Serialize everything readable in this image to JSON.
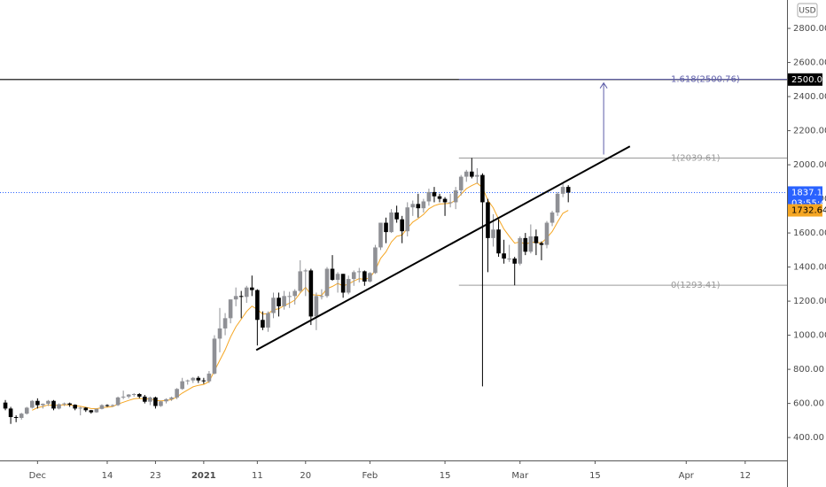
{
  "chart_data": {
    "type": "candlestick",
    "currency": "USD",
    "xlim": [
      -1,
      145.8
    ],
    "xticks": [
      {
        "value": 6,
        "label": "Dec"
      },
      {
        "value": 19,
        "label": "14"
      },
      {
        "value": 28,
        "label": "23"
      },
      {
        "value": 37,
        "label": "2021"
      },
      {
        "value": 47,
        "label": "11"
      },
      {
        "value": 56,
        "label": "20"
      },
      {
        "value": 68,
        "label": "Feb"
      },
      {
        "value": 82,
        "label": "15"
      },
      {
        "value": 96,
        "label": "Mar"
      },
      {
        "value": 110,
        "label": "15"
      },
      {
        "value": 127,
        "label": "Apr"
      },
      {
        "value": 138,
        "label": "12"
      }
    ],
    "ylim": [
      265.6,
      2966.5
    ],
    "yticks": [
      {
        "value": 400,
        "label": "400.00"
      },
      {
        "value": 600,
        "label": "600.00"
      },
      {
        "value": 800,
        "label": "800.00"
      },
      {
        "value": 1000,
        "label": "1000.00"
      },
      {
        "value": 1200,
        "label": "1200.00"
      },
      {
        "value": 1400,
        "label": "1400.00"
      },
      {
        "value": 1600,
        "label": "1600.00"
      },
      {
        "value": 1800,
        "label": "1800.00"
      },
      {
        "value": 2000,
        "label": "2000.00"
      },
      {
        "value": 2200,
        "label": "2200.00"
      },
      {
        "value": 2400,
        "label": "2400.00"
      },
      {
        "value": 2600,
        "label": "2600.00"
      },
      {
        "value": 2800,
        "label": "2800.00"
      }
    ],
    "grid": false,
    "up_color": "#8f9095",
    "down_color": "#000000",
    "ma_color": "#f5a623",
    "ohlc": [
      [
        605,
        620,
        560,
        570
      ],
      [
        570,
        580,
        480,
        520
      ],
      [
        520,
        530,
        490,
        515
      ],
      [
        515,
        545,
        505,
        540
      ],
      [
        540,
        580,
        535,
        575
      ],
      [
        575,
        620,
        570,
        615
      ],
      [
        615,
        630,
        570,
        590
      ],
      [
        590,
        600,
        570,
        598
      ],
      [
        598,
        620,
        585,
        615
      ],
      [
        615,
        620,
        560,
        570
      ],
      [
        570,
        600,
        565,
        595
      ],
      [
        595,
        605,
        585,
        600
      ],
      [
        600,
        605,
        580,
        592
      ],
      [
        592,
        595,
        560,
        570
      ],
      [
        570,
        580,
        530,
        575
      ],
      [
        575,
        578,
        550,
        560
      ],
      [
        560,
        562,
        540,
        548
      ],
      [
        548,
        570,
        545,
        568
      ],
      [
        568,
        595,
        565,
        590
      ],
      [
        590,
        595,
        580,
        585
      ],
      [
        585,
        595,
        580,
        590
      ],
      [
        590,
        640,
        585,
        635
      ],
      [
        635,
        675,
        625,
        640
      ],
      [
        640,
        655,
        630,
        652
      ],
      [
        652,
        660,
        640,
        655
      ],
      [
        655,
        660,
        630,
        640
      ],
      [
        640,
        650,
        600,
        610
      ],
      [
        610,
        640,
        590,
        635
      ],
      [
        635,
        640,
        570,
        585
      ],
      [
        585,
        615,
        580,
        612
      ],
      [
        612,
        630,
        600,
        625
      ],
      [
        625,
        640,
        615,
        635
      ],
      [
        635,
        690,
        625,
        685
      ],
      [
        685,
        750,
        680,
        730
      ],
      [
        730,
        740,
        710,
        735
      ],
      [
        735,
        755,
        720,
        750
      ],
      [
        750,
        760,
        720,
        735
      ],
      [
        735,
        750,
        715,
        730
      ],
      [
        730,
        790,
        720,
        775
      ],
      [
        775,
        1000,
        770,
        980
      ],
      [
        980,
        1160,
        900,
        1040
      ],
      [
        1040,
        1130,
        1000,
        1100
      ],
      [
        1100,
        1210,
        1070,
        1210
      ],
      [
        1210,
        1280,
        1170,
        1230
      ],
      [
        1230,
        1260,
        1100,
        1225
      ],
      [
        1225,
        1290,
        1190,
        1280
      ],
      [
        1280,
        1350,
        1230,
        1265
      ],
      [
        1265,
        1270,
        940,
        1090
      ],
      [
        1090,
        1140,
        1030,
        1045
      ],
      [
        1045,
        1140,
        1020,
        1130
      ],
      [
        1130,
        1250,
        1100,
        1220
      ],
      [
        1220,
        1250,
        1110,
        1170
      ],
      [
        1170,
        1260,
        1150,
        1230
      ],
      [
        1230,
        1255,
        1160,
        1230
      ],
      [
        1230,
        1270,
        1180,
        1260
      ],
      [
        1260,
        1440,
        1250,
        1375
      ],
      [
        1375,
        1390,
        1230,
        1380
      ],
      [
        1380,
        1390,
        1060,
        1110
      ],
      [
        1110,
        1250,
        1030,
        1230
      ],
      [
        1230,
        1270,
        1210,
        1230
      ],
      [
        1230,
        1400,
        1220,
        1390
      ],
      [
        1390,
        1470,
        1320,
        1325
      ],
      [
        1325,
        1370,
        1250,
        1360
      ],
      [
        1360,
        1360,
        1220,
        1250
      ],
      [
        1250,
        1350,
        1240,
        1330
      ],
      [
        1330,
        1380,
        1290,
        1370
      ],
      [
        1370,
        1395,
        1310,
        1375
      ],
      [
        1375,
        1380,
        1290,
        1315
      ],
      [
        1315,
        1370,
        1310,
        1365
      ],
      [
        1365,
        1530,
        1360,
        1515
      ],
      [
        1515,
        1660,
        1500,
        1660
      ],
      [
        1660,
        1690,
        1540,
        1605
      ],
      [
        1605,
        1740,
        1600,
        1720
      ],
      [
        1720,
        1760,
        1660,
        1680
      ],
      [
        1680,
        1700,
        1540,
        1610
      ],
      [
        1610,
        1780,
        1580,
        1750
      ],
      [
        1750,
        1790,
        1700,
        1770
      ],
      [
        1770,
        1830,
        1690,
        1745
      ],
      [
        1745,
        1800,
        1720,
        1785
      ],
      [
        1785,
        1860,
        1760,
        1840
      ],
      [
        1840,
        1870,
        1780,
        1815
      ],
      [
        1815,
        1830,
        1780,
        1800
      ],
      [
        1800,
        1810,
        1700,
        1780
      ],
      [
        1780,
        1830,
        1750,
        1780
      ],
      [
        1780,
        1870,
        1740,
        1850
      ],
      [
        1850,
        1940,
        1820,
        1930
      ],
      [
        1930,
        1970,
        1900,
        1960
      ],
      [
        1960,
        2040,
        1920,
        1930
      ],
      [
        1930,
        1980,
        1890,
        1940
      ],
      [
        1940,
        1950,
        700,
        1780
      ],
      [
        1780,
        1800,
        1370,
        1570
      ],
      [
        1570,
        1710,
        1520,
        1620
      ],
      [
        1620,
        1680,
        1460,
        1480
      ],
      [
        1480,
        1560,
        1420,
        1450
      ],
      [
        1450,
        1530,
        1430,
        1450
      ],
      [
        1450,
        1460,
        1293,
        1420
      ],
      [
        1420,
        1580,
        1410,
        1570
      ],
      [
        1570,
        1600,
        1470,
        1490
      ],
      [
        1490,
        1650,
        1480,
        1580
      ],
      [
        1580,
        1620,
        1470,
        1540
      ],
      [
        1540,
        1550,
        1440,
        1530
      ],
      [
        1530,
        1670,
        1510,
        1660
      ],
      [
        1660,
        1730,
        1640,
        1720
      ],
      [
        1720,
        1840,
        1700,
        1830
      ],
      [
        1830,
        1890,
        1810,
        1870
      ],
      [
        1870,
        1880,
        1780,
        1837.11
      ]
    ],
    "ma": [
      null,
      null,
      null,
      null,
      null,
      560,
      575,
      582,
      592,
      588,
      590,
      592,
      592,
      586,
      583,
      577,
      570,
      569,
      575,
      578,
      581,
      596,
      607,
      618,
      627,
      630,
      625,
      628,
      617,
      615,
      618,
      622,
      638,
      661,
      679,
      697,
      706,
      712,
      728,
      791,
      853,
      915,
      989,
      1050,
      1094,
      1140,
      1171,
      1151,
      1124,
      1126,
      1150,
      1155,
      1174,
      1188,
      1206,
      1248,
      1281,
      1238,
      1236,
      1234,
      1273,
      1286,
      1304,
      1290,
      1300,
      1318,
      1332,
      1328,
      1337,
      1382,
      1451,
      1489,
      1547,
      1580,
      1588,
      1628,
      1664,
      1684,
      1709,
      1742,
      1760,
      1770,
      1772,
      1774,
      1793,
      1827,
      1860,
      1878,
      1893,
      1865,
      1791,
      1748,
      1681,
      1623,
      1580,
      1540,
      1548,
      1534,
      1546,
      1545,
      1541,
      1571,
      1608,
      1664,
      1715,
      1732.64
    ],
    "trend_line": {
      "x": [
        46.8,
        116.5
      ],
      "y": [
        913,
        2108
      ]
    },
    "arrow": {
      "x": 111.6,
      "y": [
        2060,
        2480
      ]
    },
    "fib_start": 84.6,
    "fib_levels": [
      {
        "value": 2500.76,
        "label": "1.618(2500.76)",
        "color": "#5c5ca8"
      },
      {
        "value": 2039.61,
        "label": "1(2039.61)",
        "color": "#9a9a9a"
      },
      {
        "value": 1293.41,
        "label": "0(1293.41)",
        "color": "#9a9a9a"
      }
    ],
    "horizontal_line": {
      "value": 2500,
      "label": "2500.00"
    },
    "last_price": {
      "value": 1837.11,
      "label": "1837.11",
      "countdown": "03:55:49"
    },
    "ma_last": {
      "value": 1732.64,
      "label": "1732.64"
    }
  }
}
